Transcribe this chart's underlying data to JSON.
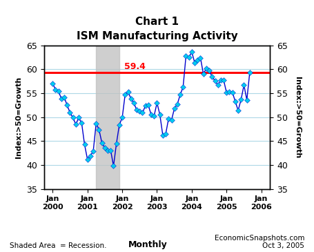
{
  "title_line1": "Chart 1",
  "title_line2": "ISM Manufacturing Activity",
  "ylabel_left": "Index:>50=Growth",
  "ylabel_right": "Index:>50=Growth",
  "ylim": [
    35,
    65
  ],
  "yticks": [
    35,
    40,
    45,
    50,
    55,
    60,
    65
  ],
  "reference_line_y": 59.4,
  "reference_line_label": "59.4",
  "recession_start": 2001.25,
  "recession_end": 2001.917,
  "line_color": "#0000CD",
  "marker_color": "#00CCEE",
  "ref_line_color": "#FF0000",
  "grid_color": "#ADD8E6",
  "bg_color": "#FFFFFF",
  "footer_left": "Shaded Area  = Recession.",
  "footer_center": "Monthly",
  "footer_right": "EconomicSnapshots.com\nOct 3, 2005",
  "ism_data": [
    [
      2000.0,
      57.0
    ],
    [
      2000.083,
      55.8
    ],
    [
      2000.167,
      55.4
    ],
    [
      2000.25,
      53.9
    ],
    [
      2000.333,
      54.1
    ],
    [
      2000.417,
      52.5
    ],
    [
      2000.5,
      50.9
    ],
    [
      2000.583,
      49.9
    ],
    [
      2000.667,
      48.5
    ],
    [
      2000.75,
      49.9
    ],
    [
      2000.833,
      48.8
    ],
    [
      2000.917,
      44.3
    ],
    [
      2001.0,
      41.2
    ],
    [
      2001.083,
      41.9
    ],
    [
      2001.167,
      42.9
    ],
    [
      2001.25,
      48.7
    ],
    [
      2001.333,
      47.4
    ],
    [
      2001.417,
      44.6
    ],
    [
      2001.5,
      43.6
    ],
    [
      2001.583,
      43.0
    ],
    [
      2001.667,
      43.1
    ],
    [
      2001.75,
      39.8
    ],
    [
      2001.833,
      44.5
    ],
    [
      2001.917,
      48.4
    ],
    [
      2002.0,
      49.9
    ],
    [
      2002.083,
      54.7
    ],
    [
      2002.167,
      55.3
    ],
    [
      2002.25,
      53.9
    ],
    [
      2002.333,
      53.0
    ],
    [
      2002.417,
      51.5
    ],
    [
      2002.5,
      51.2
    ],
    [
      2002.583,
      50.9
    ],
    [
      2002.667,
      52.4
    ],
    [
      2002.75,
      52.5
    ],
    [
      2002.833,
      50.5
    ],
    [
      2002.917,
      50.3
    ],
    [
      2003.0,
      53.0
    ],
    [
      2003.083,
      50.5
    ],
    [
      2003.167,
      46.2
    ],
    [
      2003.25,
      46.5
    ],
    [
      2003.333,
      49.7
    ],
    [
      2003.417,
      49.4
    ],
    [
      2003.5,
      51.8
    ],
    [
      2003.583,
      52.7
    ],
    [
      2003.667,
      54.7
    ],
    [
      2003.75,
      56.3
    ],
    [
      2003.833,
      62.8
    ],
    [
      2003.917,
      62.5
    ],
    [
      2004.0,
      63.6
    ],
    [
      2004.083,
      61.4
    ],
    [
      2004.167,
      62.0
    ],
    [
      2004.25,
      62.4
    ],
    [
      2004.333,
      59.0
    ],
    [
      2004.417,
      60.2
    ],
    [
      2004.5,
      59.7
    ],
    [
      2004.583,
      58.5
    ],
    [
      2004.667,
      57.6
    ],
    [
      2004.75,
      56.7
    ],
    [
      2004.833,
      57.7
    ],
    [
      2004.917,
      57.7
    ],
    [
      2005.0,
      55.1
    ],
    [
      2005.083,
      55.3
    ],
    [
      2005.167,
      55.2
    ],
    [
      2005.25,
      53.3
    ],
    [
      2005.333,
      51.4
    ],
    [
      2005.417,
      53.7
    ],
    [
      2005.5,
      56.7
    ],
    [
      2005.583,
      53.6
    ],
    [
      2005.667,
      59.4
    ]
  ],
  "xtick_positions": [
    2000.0,
    2001.0,
    2002.0,
    2003.0,
    2004.0,
    2005.0,
    2006.0
  ],
  "xtick_labels": [
    "Jan\n2000",
    "Jan\n2001",
    "Jan\n2002",
    "Jan\n2003",
    "Jan\n2004",
    "Jan\n2005",
    "Jan\n2006"
  ],
  "xlim": [
    1999.75,
    2006.25
  ]
}
